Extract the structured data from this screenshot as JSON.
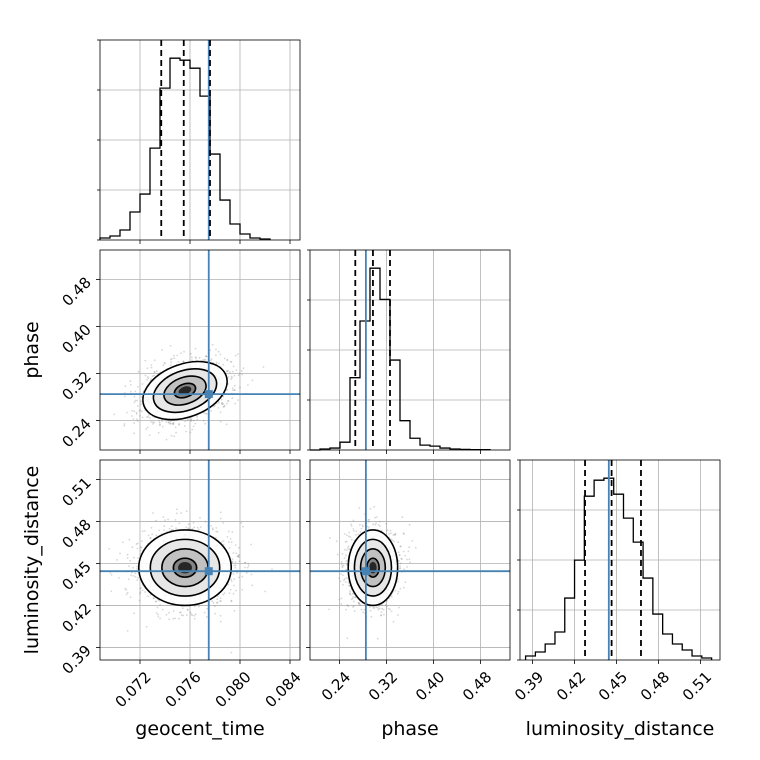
{
  "chart_data": {
    "type": "corner",
    "parameters": [
      {
        "key": "geocent_time",
        "label": "geocent_time",
        "range": [
          0.0688,
          0.0848
        ],
        "ticks": [
          0.072,
          0.076,
          0.08,
          0.084
        ],
        "tick_labels": [
          "0.072",
          "0.076",
          "0.080",
          "0.084"
        ],
        "truth": 0.0775,
        "quantiles": [
          0.0737,
          0.0755,
          0.0776
        ],
        "histogram": {
          "bin_edges": [
            0.0688,
            0.0696,
            0.0704,
            0.0712,
            0.072,
            0.0728,
            0.0736,
            0.0744,
            0.0752,
            0.076,
            0.0768,
            0.0776,
            0.0784,
            0.0792,
            0.08,
            0.0808,
            0.0816,
            0.0824
          ],
          "counts": [
            0.01,
            0.02,
            0.05,
            0.14,
            0.23,
            0.46,
            0.76,
            0.91,
            0.9,
            0.86,
            0.72,
            0.43,
            0.2,
            0.08,
            0.03,
            0.01,
            0.005
          ]
        }
      },
      {
        "key": "phase",
        "label": "phase",
        "range": [
          0.19,
          0.53
        ],
        "ticks": [
          0.24,
          0.32,
          0.4,
          0.48
        ],
        "tick_labels": [
          "0.24",
          "0.32",
          "0.40",
          "0.48"
        ],
        "truth": 0.285,
        "quantiles": [
          0.267,
          0.297,
          0.326
        ],
        "histogram": {
          "bin_edges": [
            0.19,
            0.207,
            0.224,
            0.241,
            0.258,
            0.275,
            0.292,
            0.309,
            0.326,
            0.343,
            0.36,
            0.377,
            0.394,
            0.411,
            0.428,
            0.445,
            0.462,
            0.479,
            0.496
          ],
          "counts": [
            0.0,
            0.005,
            0.01,
            0.04,
            0.37,
            0.66,
            0.93,
            0.77,
            0.46,
            0.15,
            0.06,
            0.025,
            0.02,
            0.01,
            0.005,
            0.003,
            0.002,
            0.002
          ]
        }
      },
      {
        "key": "luminosity_distance",
        "label": "luminosity_distance",
        "range": [
          0.381,
          0.524
        ],
        "ticks": [
          0.39,
          0.42,
          0.45,
          0.48,
          0.51
        ],
        "tick_labels": [
          "0.39",
          "0.42",
          "0.45",
          "0.48",
          "0.51"
        ],
        "truth": 0.4445,
        "quantiles": [
          0.4275,
          0.4465,
          0.4675
        ],
        "histogram": {
          "bin_edges": [
            0.385,
            0.392,
            0.399,
            0.406,
            0.413,
            0.42,
            0.427,
            0.434,
            0.441,
            0.448,
            0.455,
            0.462,
            0.469,
            0.476,
            0.483,
            0.49,
            0.497,
            0.504,
            0.511,
            0.518
          ],
          "counts": [
            0.02,
            0.04,
            0.08,
            0.14,
            0.31,
            0.5,
            0.82,
            0.9,
            0.91,
            0.83,
            0.71,
            0.59,
            0.41,
            0.23,
            0.13,
            0.08,
            0.05,
            0.02,
            0.01
          ]
        }
      }
    ],
    "posterior_2d": {
      "geocent_time__phase": {
        "mean": [
          0.0756,
          0.291
        ],
        "std": [
          0.00175,
          0.0225
        ],
        "rotation_deg": 20
      },
      "geocent_time__luminosity_distance": {
        "mean": [
          0.0756,
          0.447
        ],
        "std": [
          0.00185,
          0.0135
        ],
        "rotation_deg": 0
      },
      "phase__luminosity_distance": {
        "mean": [
          0.297,
          0.447
        ],
        "std": [
          0.021,
          0.0135
        ],
        "rotation_deg": 0
      }
    },
    "contour_levels_sigma": [
      0.5,
      1.0,
      1.5,
      2.0
    ],
    "grid": true,
    "colors": {
      "histogram": "#000000",
      "quantile_lines": "#000000",
      "truth": "#4682b4",
      "density": "#000000",
      "grid": "#b0b0b0",
      "scatter": "#6e6e6e"
    }
  }
}
